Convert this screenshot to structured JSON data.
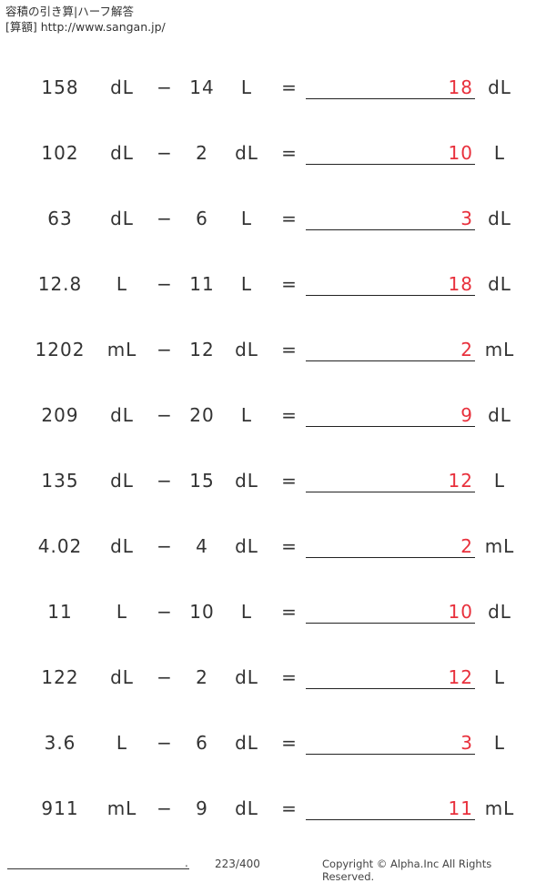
{
  "header": {
    "title": "容積の引き算|ハーフ解答",
    "source": "[算額] http://www.sangan.jp/"
  },
  "operator": "−",
  "equals": "=",
  "problems": [
    {
      "a": "158",
      "ua": "dL",
      "b": "14",
      "ub": "L",
      "ans": "18",
      "ar": "dL"
    },
    {
      "a": "102",
      "ua": "dL",
      "b": "2",
      "ub": "dL",
      "ans": "10",
      "ar": "L"
    },
    {
      "a": "63",
      "ua": "dL",
      "b": "6",
      "ub": "L",
      "ans": "3",
      "ar": "dL"
    },
    {
      "a": "12.8",
      "ua": "L",
      "b": "11",
      "ub": "L",
      "ans": "18",
      "ar": "dL"
    },
    {
      "a": "1202",
      "ua": "mL",
      "b": "12",
      "ub": "dL",
      "ans": "2",
      "ar": "mL"
    },
    {
      "a": "209",
      "ua": "dL",
      "b": "20",
      "ub": "L",
      "ans": "9",
      "ar": "dL"
    },
    {
      "a": "135",
      "ua": "dL",
      "b": "15",
      "ub": "dL",
      "ans": "12",
      "ar": "L"
    },
    {
      "a": "4.02",
      "ua": "dL",
      "b": "4",
      "ub": "dL",
      "ans": "2",
      "ar": "mL"
    },
    {
      "a": "11",
      "ua": "L",
      "b": "10",
      "ub": "L",
      "ans": "10",
      "ar": "dL"
    },
    {
      "a": "122",
      "ua": "dL",
      "b": "2",
      "ub": "dL",
      "ans": "12",
      "ar": "L"
    },
    {
      "a": "3.6",
      "ua": "L",
      "b": "6",
      "ub": "dL",
      "ans": "3",
      "ar": "L"
    },
    {
      "a": "911",
      "ua": "mL",
      "b": "9",
      "ub": "dL",
      "ans": "11",
      "ar": "mL"
    }
  ],
  "footer": {
    "dot": ".",
    "page": "223/400",
    "copyright": "Copyright © Alpha.Inc All Rights Reserved."
  },
  "colors": {
    "answer": "#e8303c",
    "text": "#333333"
  }
}
